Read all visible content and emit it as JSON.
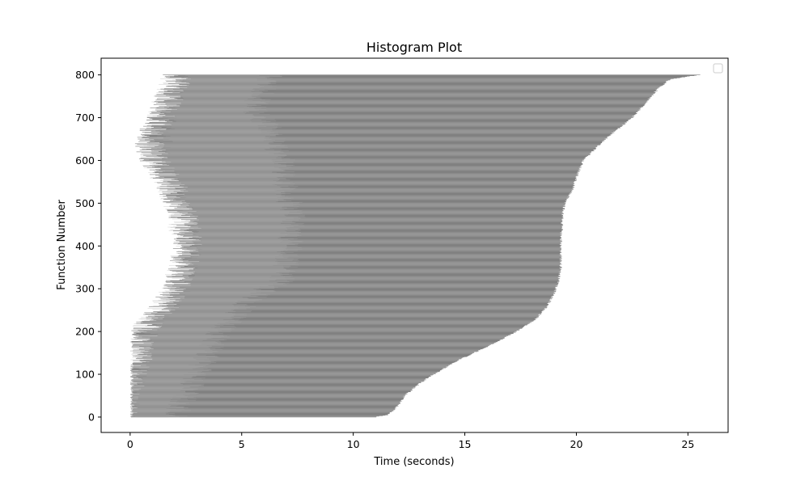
{
  "chart_data": {
    "type": "bar",
    "orientation": "horizontal",
    "title": "Histogram Plot",
    "xlabel": "Time (seconds)",
    "ylabel": "Function Number",
    "xlim": [
      -1.3,
      26.8
    ],
    "ylim": [
      -36,
      839
    ],
    "x_ticks": [
      0,
      5,
      10,
      15,
      20,
      25
    ],
    "y_ticks": [
      0,
      100,
      200,
      300,
      400,
      500,
      600,
      700,
      800
    ],
    "bar_count": 801,
    "legend": {
      "location": "upper right",
      "entries": []
    },
    "grid": false,
    "colors": {
      "bar_primary": "#808080",
      "bar_overlay": "#a9a9a9",
      "axis": "#000000",
      "background": "#ffffff"
    },
    "series": [
      {
        "color": "#808080",
        "start_profile": [
          [
            0,
            0.0
          ],
          [
            50,
            0.2
          ],
          [
            100,
            0.5
          ],
          [
            150,
            0.8
          ],
          [
            200,
            1.0
          ],
          [
            250,
            1.8
          ],
          [
            300,
            2.5
          ],
          [
            350,
            2.8
          ],
          [
            400,
            3.0
          ],
          [
            450,
            3.0
          ],
          [
            500,
            2.5
          ],
          [
            550,
            2.2
          ],
          [
            600,
            1.5
          ],
          [
            650,
            1.2
          ],
          [
            700,
            1.8
          ],
          [
            750,
            2.2
          ],
          [
            800,
            2.5
          ]
        ],
        "end_profile": [
          [
            0,
            11.0
          ],
          [
            5,
            11.5
          ],
          [
            20,
            11.9
          ],
          [
            50,
            12.3
          ],
          [
            80,
            13.0
          ],
          [
            100,
            13.6
          ],
          [
            130,
            14.6
          ],
          [
            160,
            15.8
          ],
          [
            180,
            16.6
          ],
          [
            200,
            17.3
          ],
          [
            230,
            18.2
          ],
          [
            260,
            18.7
          ],
          [
            290,
            19.0
          ],
          [
            320,
            19.2
          ],
          [
            350,
            19.3
          ],
          [
            400,
            19.3
          ],
          [
            450,
            19.35
          ],
          [
            480,
            19.4
          ],
          [
            500,
            19.5
          ],
          [
            530,
            19.8
          ],
          [
            560,
            20.0
          ],
          [
            600,
            20.3
          ],
          [
            650,
            21.3
          ],
          [
            700,
            22.5
          ],
          [
            740,
            23.2
          ],
          [
            770,
            23.7
          ],
          [
            790,
            24.2
          ],
          [
            800,
            25.5
          ]
        ]
      },
      {
        "color": "#a9a9a9",
        "start_profile": [
          [
            0,
            0.0
          ],
          [
            100,
            0.5
          ],
          [
            200,
            1.0
          ],
          [
            300,
            2.5
          ],
          [
            400,
            3.0
          ],
          [
            500,
            2.5
          ],
          [
            600,
            1.5
          ],
          [
            700,
            1.8
          ],
          [
            800,
            2.5
          ]
        ],
        "end_profile": [
          [
            0,
            2.0
          ],
          [
            100,
            3.0
          ],
          [
            200,
            4.0
          ],
          [
            280,
            5.5
          ],
          [
            320,
            6.8
          ],
          [
            400,
            7.2
          ],
          [
            480,
            7.3
          ],
          [
            520,
            7.0
          ],
          [
            600,
            6.8
          ],
          [
            680,
            6.2
          ],
          [
            720,
            5.5
          ],
          [
            800,
            6.3
          ]
        ]
      }
    ]
  }
}
